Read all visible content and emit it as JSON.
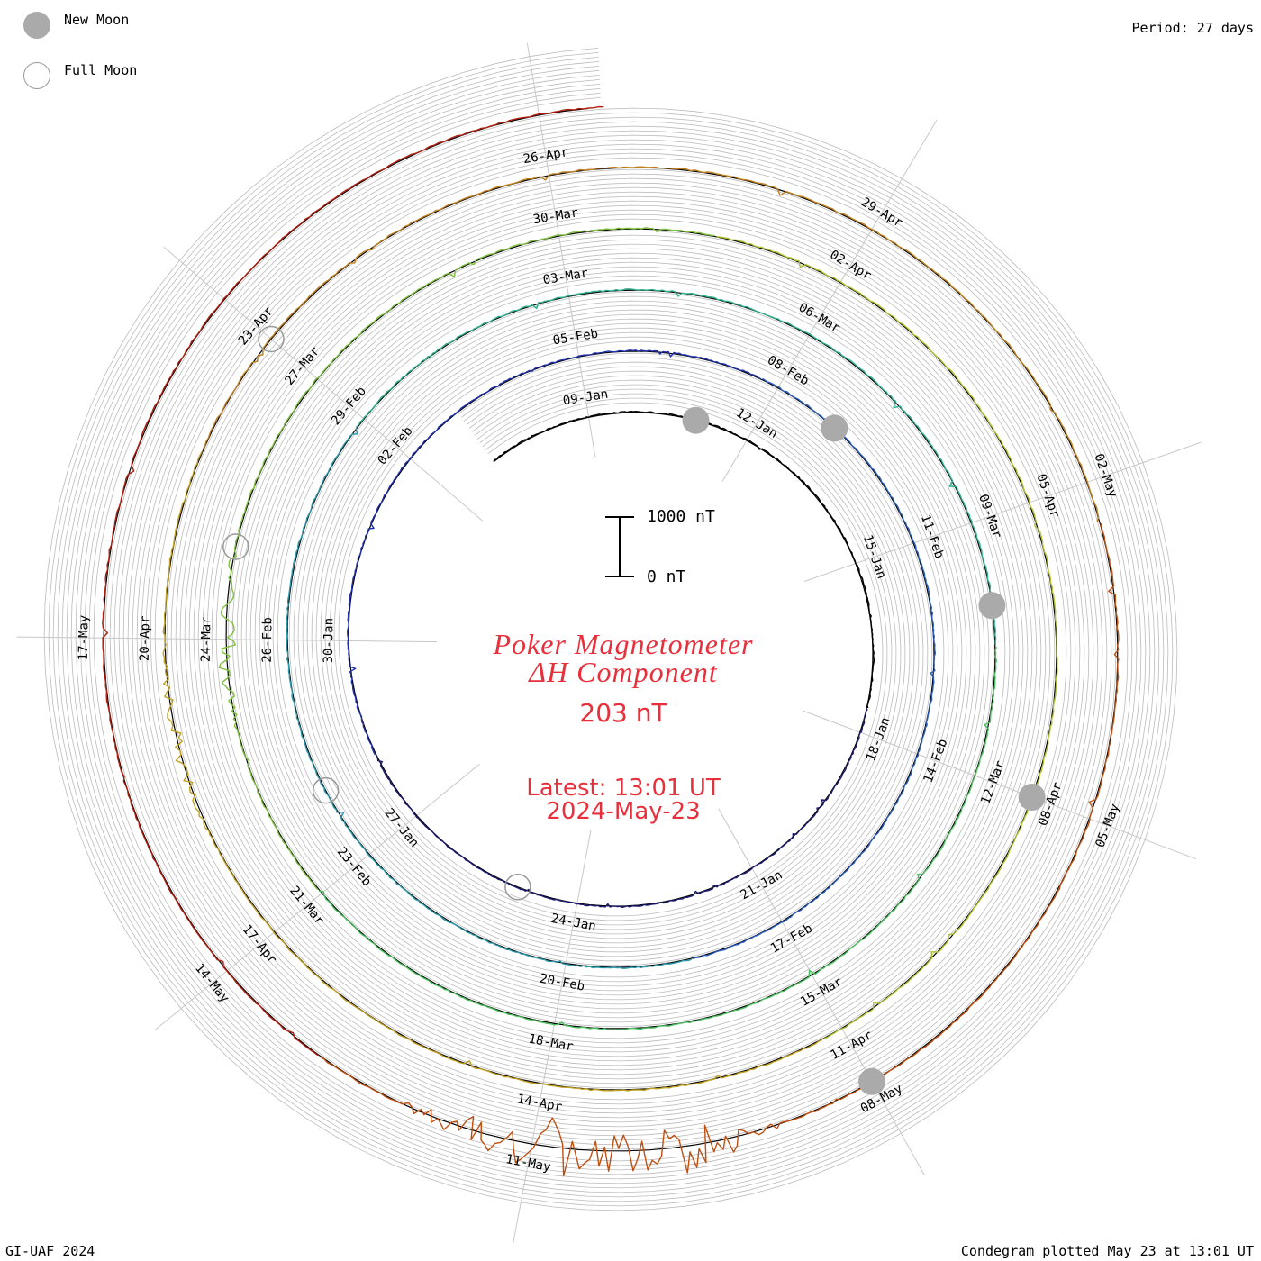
{
  "header": {
    "period": "Period: 27 days"
  },
  "legend": {
    "new_moon": "New Moon",
    "full_moon": "Full Moon"
  },
  "center": {
    "title_line1": "Poker Magnetometer",
    "title_line2": "ΔH Component",
    "current_value": "203 nT",
    "latest": "Latest: 13:01 UT",
    "latest_date": "2024-May-23"
  },
  "scale_bar": {
    "top_label": "1000 nT",
    "bottom_label": "0 nT"
  },
  "footer": {
    "credit": "GI-UAF 2024",
    "plotted": "Condegram plotted May 23 at 13:01 UT"
  },
  "colors": {
    "accent_text": "#e8303c",
    "grid": "#bbbbbb",
    "baseline": "#000000",
    "new_moon": "#aaaaaa",
    "full_moon": "#999999"
  },
  "chart_data": {
    "type": "line",
    "subtype": "spiral condegram",
    "period_days": 27,
    "start_date": "2024-01-07",
    "end_date": "2024-05-23",
    "spoke_interval_days": 3,
    "scale_nT": [
      0,
      1000
    ],
    "date_labels": [
      "09-Jan",
      "12-Jan",
      "15-Jan",
      "18-Jan",
      "21-Jan",
      "24-Jan",
      "27-Jan",
      "30-Jan",
      "02-Feb",
      "05-Feb",
      "08-Feb",
      "11-Feb",
      "14-Feb",
      "17-Feb",
      "20-Feb",
      "23-Feb",
      "26-Feb",
      "29-Feb",
      "03-Mar",
      "06-Mar",
      "09-Mar",
      "12-Mar",
      "15-Mar",
      "18-Mar",
      "21-Mar",
      "24-Mar",
      "27-Mar",
      "30-Mar",
      "02-Apr",
      "05-Apr",
      "08-Apr",
      "11-Apr",
      "14-Apr",
      "17-Apr",
      "20-Apr",
      "23-Apr",
      "26-Apr",
      "29-Apr",
      "02-May",
      "05-May",
      "08-May",
      "11-May",
      "14-May",
      "17-May"
    ],
    "series": [
      {
        "color": "#000000"
      },
      {
        "color": "#1a1a6e"
      },
      {
        "color": "#2030a8"
      },
      {
        "color": "#2a5cc0"
      },
      {
        "color": "#2a9aaa"
      },
      {
        "color": "#30b090"
      },
      {
        "color": "#4cc060"
      },
      {
        "color": "#80c040"
      },
      {
        "color": "#b0c030"
      },
      {
        "color": "#c0a020"
      },
      {
        "color": "#c08020"
      },
      {
        "color": "#c05010"
      },
      {
        "color": "#b02010"
      }
    ],
    "new_moons": [
      "2024-01-11",
      "2024-02-09",
      "2024-03-10",
      "2024-04-08",
      "2024-05-08"
    ],
    "full_moons": [
      "2024-01-25",
      "2024-02-24",
      "2024-03-25",
      "2024-04-23"
    ],
    "storms": [
      {
        "date": "2024-03-24",
        "peak_nT": 350
      },
      {
        "date": "2024-05-10",
        "peak_nT": 1100
      },
      {
        "date": "2024-05-11",
        "peak_nT": 900
      },
      {
        "date": "2024-04-19",
        "peak_nT": 200
      }
    ],
    "latest_value_nT": 203
  }
}
